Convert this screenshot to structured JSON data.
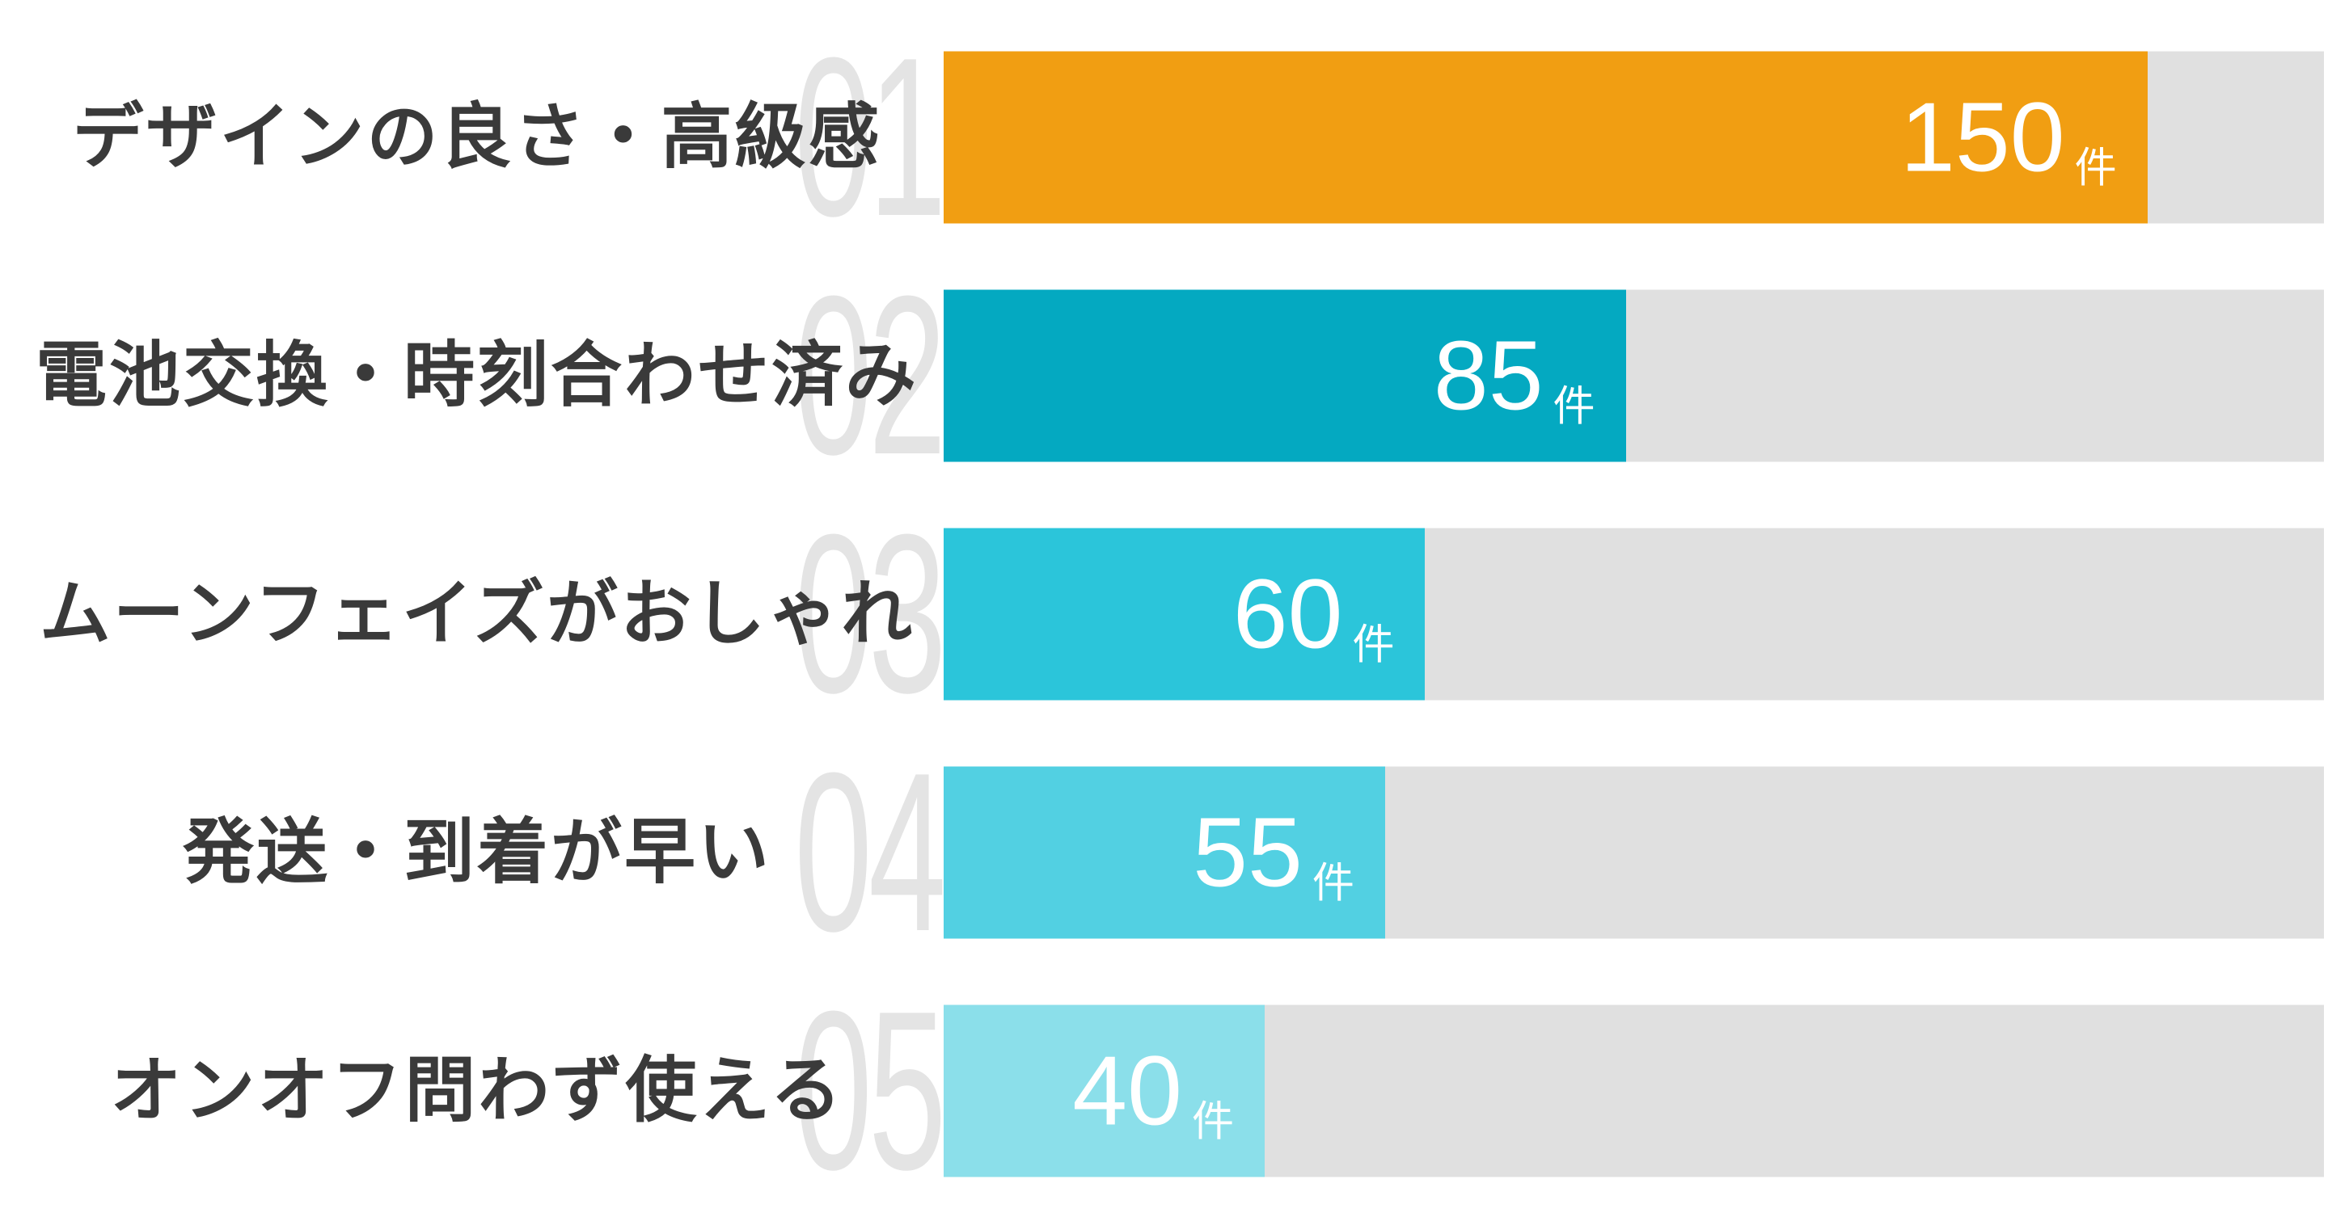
{
  "chart_data": {
    "type": "bar",
    "orientation": "horizontal",
    "title": "",
    "categories": [
      "デザインの良さ・高級感",
      "電池交換・時刻合わせ済み",
      "ムーンフェイズがおしゃれ",
      "発送・到着が早い",
      "オンオフ問わず使える"
    ],
    "values": [
      150,
      85,
      60,
      55,
      40
    ],
    "value_unit": "件",
    "ranks": [
      "01",
      "02",
      "03",
      "04",
      "05"
    ],
    "xlim": [
      0,
      172
    ],
    "grid": false,
    "legend": false,
    "colors": {
      "bars": [
        "#f19e12",
        "#04a9c1",
        "#2bc5da",
        "#52d0e2",
        "#8bdfea"
      ],
      "track": "#e0e0e0",
      "rank_watermark": "#e4e4e4",
      "label_text": "#3a3a3a",
      "value_text": "#ffffff"
    }
  }
}
